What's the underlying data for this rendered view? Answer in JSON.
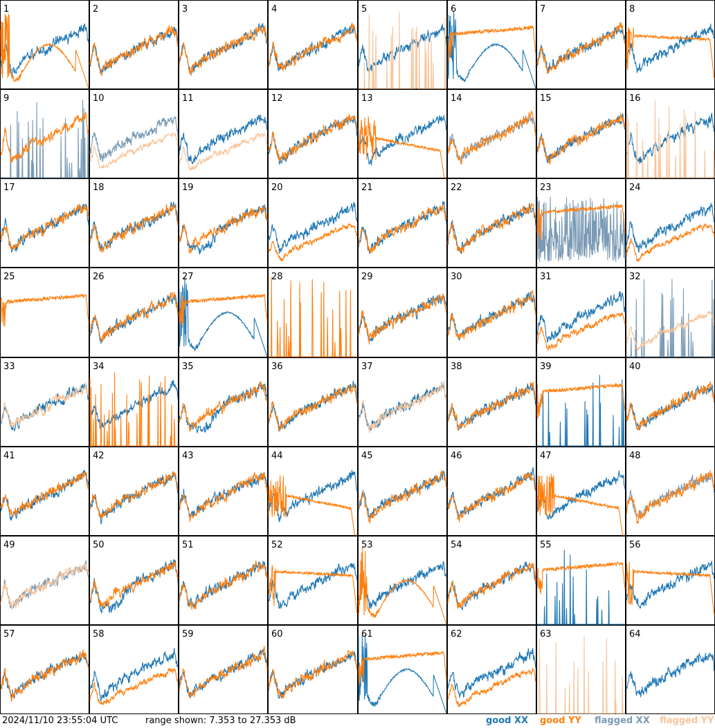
{
  "header": {
    "timestamp": "2024/11/10 23:55:04 UTC",
    "range_text": "range shown: 7.353 to 27.353 dB"
  },
  "legend": {
    "good_xx": "good XX",
    "good_yy": "good YY",
    "flagged_xx": "flagged XX",
    "flagged_yy": "flagged YY"
  },
  "colors": {
    "good_xx": "#1f77b4",
    "good_yy": "#ff7f0e",
    "flagged_xx": "#7a9ab5",
    "flagged_yy": "#f8c49a",
    "frame": "#000000"
  },
  "chart_data": {
    "type": "line",
    "rows": 8,
    "cols": 8,
    "ylim_db": [
      7.353,
      27.353
    ],
    "tiles": [
      {
        "id": "1",
        "xx": "good",
        "yy": "good",
        "xx_shape": "normal",
        "yy_shape": "dip-bump-fall"
      },
      {
        "id": "2",
        "xx": "good",
        "yy": "good",
        "xx_shape": "normal",
        "yy_shape": "normal"
      },
      {
        "id": "3",
        "xx": "good",
        "yy": "good",
        "xx_shape": "normal",
        "yy_shape": "normal"
      },
      {
        "id": "4",
        "xx": "good",
        "yy": "good",
        "xx_shape": "normal",
        "yy_shape": "normal"
      },
      {
        "id": "5",
        "xx": "good",
        "yy": "flagged",
        "xx_shape": "normal",
        "yy_shape": "spikes-low"
      },
      {
        "id": "6",
        "xx": "good",
        "yy": "good",
        "xx_shape": "dip-bump-fall",
        "yy_shape": "flat-high"
      },
      {
        "id": "7",
        "xx": "good",
        "yy": "good",
        "xx_shape": "normal",
        "yy_shape": "normal"
      },
      {
        "id": "8",
        "xx": "good",
        "yy": "good",
        "xx_shape": "normal",
        "yy_shape": "flat-mid"
      },
      {
        "id": "9",
        "xx": "flagged",
        "yy": "good",
        "xx_shape": "spikes-low",
        "yy_shape": "normal"
      },
      {
        "id": "10",
        "xx": "flagged",
        "yy": "flagged",
        "xx_shape": "normal",
        "yy_shape": "low-curve"
      },
      {
        "id": "11",
        "xx": "good",
        "yy": "flagged",
        "xx_shape": "normal",
        "yy_shape": "low-curve"
      },
      {
        "id": "12",
        "xx": "good",
        "yy": "good",
        "xx_shape": "normal",
        "yy_shape": "normal"
      },
      {
        "id": "13",
        "xx": "good",
        "yy": "good",
        "xx_shape": "normal",
        "yy_shape": "decline-fall"
      },
      {
        "id": "14",
        "xx": "flagged",
        "yy": "good",
        "xx_shape": "normal",
        "yy_shape": "normal"
      },
      {
        "id": "15",
        "xx": "good",
        "yy": "good",
        "xx_shape": "normal",
        "yy_shape": "normal"
      },
      {
        "id": "16",
        "xx": "good",
        "yy": "flagged",
        "xx_shape": "normal",
        "yy_shape": "spikes-low"
      },
      {
        "id": "17",
        "xx": "good",
        "yy": "good",
        "xx_shape": "normal",
        "yy_shape": "normal"
      },
      {
        "id": "18",
        "xx": "good",
        "yy": "good",
        "xx_shape": "normal",
        "yy_shape": "normal"
      },
      {
        "id": "19",
        "xx": "good",
        "yy": "good",
        "xx_shape": "deep",
        "yy_shape": "normal"
      },
      {
        "id": "20",
        "xx": "good",
        "yy": "good",
        "xx_shape": "normal",
        "yy_shape": "low-curve"
      },
      {
        "id": "21",
        "xx": "good",
        "yy": "good",
        "xx_shape": "normal",
        "yy_shape": "normal"
      },
      {
        "id": "22",
        "xx": "good",
        "yy": "good",
        "xx_shape": "normal",
        "yy_shape": "normal"
      },
      {
        "id": "23",
        "xx": "flagged",
        "yy": "good",
        "xx_shape": "noisy-low",
        "yy_shape": "flat-high"
      },
      {
        "id": "24",
        "xx": "good",
        "yy": "good",
        "xx_shape": "normal",
        "yy_shape": "low-curve"
      },
      {
        "id": "25",
        "xx": "good",
        "yy": "good",
        "xx_shape": "none",
        "yy_shape": "flat-high"
      },
      {
        "id": "26",
        "xx": "good",
        "yy": "good",
        "xx_shape": "normal",
        "yy_shape": "normal"
      },
      {
        "id": "27",
        "xx": "good",
        "yy": "good",
        "xx_shape": "dip-bump-fall",
        "yy_shape": "flat-high"
      },
      {
        "id": "28",
        "xx": "good",
        "yy": "good",
        "xx_shape": "none",
        "yy_shape": "spikes-low"
      },
      {
        "id": "29",
        "xx": "good",
        "yy": "good",
        "xx_shape": "normal",
        "yy_shape": "normal"
      },
      {
        "id": "30",
        "xx": "good",
        "yy": "good",
        "xx_shape": "normal",
        "yy_shape": "normal"
      },
      {
        "id": "31",
        "xx": "good",
        "yy": "good",
        "xx_shape": "normal",
        "yy_shape": "low-curve"
      },
      {
        "id": "32",
        "xx": "flagged",
        "yy": "flagged",
        "xx_shape": "spikes-low",
        "yy_shape": "low-curve"
      },
      {
        "id": "33",
        "xx": "good",
        "yy": "flagged",
        "xx_shape": "normal",
        "yy_shape": "normal"
      },
      {
        "id": "34",
        "xx": "good",
        "yy": "good",
        "xx_shape": "normal",
        "yy_shape": "spikes-low"
      },
      {
        "id": "35",
        "xx": "good",
        "yy": "good",
        "xx_shape": "deep",
        "yy_shape": "normal"
      },
      {
        "id": "36",
        "xx": "good",
        "yy": "good",
        "xx_shape": "normal",
        "yy_shape": "normal"
      },
      {
        "id": "37",
        "xx": "good",
        "yy": "flagged",
        "xx_shape": "normal",
        "yy_shape": "normal"
      },
      {
        "id": "38",
        "xx": "good",
        "yy": "good",
        "xx_shape": "normal",
        "yy_shape": "normal"
      },
      {
        "id": "39",
        "xx": "good",
        "yy": "good",
        "xx_shape": "spikes-low",
        "yy_shape": "flat-high"
      },
      {
        "id": "40",
        "xx": "good",
        "yy": "good",
        "xx_shape": "normal",
        "yy_shape": "normal"
      },
      {
        "id": "41",
        "xx": "good",
        "yy": "good",
        "xx_shape": "normal",
        "yy_shape": "normal"
      },
      {
        "id": "42",
        "xx": "good",
        "yy": "good",
        "xx_shape": "normal",
        "yy_shape": "normal"
      },
      {
        "id": "43",
        "xx": "good",
        "yy": "good",
        "xx_shape": "normal",
        "yy_shape": "normal"
      },
      {
        "id": "44",
        "xx": "good",
        "yy": "good",
        "xx_shape": "normal",
        "yy_shape": "decline-fall"
      },
      {
        "id": "45",
        "xx": "good",
        "yy": "good",
        "xx_shape": "normal",
        "yy_shape": "normal"
      },
      {
        "id": "46",
        "xx": "good",
        "yy": "good",
        "xx_shape": "normal",
        "yy_shape": "normal"
      },
      {
        "id": "47",
        "xx": "good",
        "yy": "good",
        "xx_shape": "normal",
        "yy_shape": "decline-fall"
      },
      {
        "id": "48",
        "xx": "flagged",
        "yy": "good",
        "xx_shape": "normal",
        "yy_shape": "normal"
      },
      {
        "id": "49",
        "xx": "flagged",
        "yy": "flagged",
        "xx_shape": "normal",
        "yy_shape": "normal"
      },
      {
        "id": "50",
        "xx": "good",
        "yy": "good",
        "xx_shape": "deep",
        "yy_shape": "normal"
      },
      {
        "id": "51",
        "xx": "good",
        "yy": "good",
        "xx_shape": "normal",
        "yy_shape": "normal"
      },
      {
        "id": "52",
        "xx": "good",
        "yy": "good",
        "xx_shape": "normal",
        "yy_shape": "flat-mid"
      },
      {
        "id": "53",
        "xx": "good",
        "yy": "good",
        "xx_shape": "normal",
        "yy_shape": "dip-bump-fall"
      },
      {
        "id": "54",
        "xx": "good",
        "yy": "good",
        "xx_shape": "normal",
        "yy_shape": "normal"
      },
      {
        "id": "55",
        "xx": "good",
        "yy": "good",
        "xx_shape": "spikes-low",
        "yy_shape": "flat-high"
      },
      {
        "id": "56",
        "xx": "good",
        "yy": "good",
        "xx_shape": "normal",
        "yy_shape": "flat-mid"
      },
      {
        "id": "57",
        "xx": "good",
        "yy": "good",
        "xx_shape": "normal",
        "yy_shape": "normal"
      },
      {
        "id": "58",
        "xx": "good",
        "yy": "good",
        "xx_shape": "normal",
        "yy_shape": "low-curve"
      },
      {
        "id": "59",
        "xx": "good",
        "yy": "good",
        "xx_shape": "normal",
        "yy_shape": "normal"
      },
      {
        "id": "60",
        "xx": "good",
        "yy": "good",
        "xx_shape": "normal",
        "yy_shape": "normal"
      },
      {
        "id": "61",
        "xx": "good",
        "yy": "good",
        "xx_shape": "dip-bump-fall",
        "yy_shape": "flat-high"
      },
      {
        "id": "62",
        "xx": "good",
        "yy": "good",
        "xx_shape": "normal",
        "yy_shape": "low-curve"
      },
      {
        "id": "63",
        "xx": "good",
        "yy": "flagged",
        "xx_shape": "none",
        "yy_shape": "spikes-low"
      },
      {
        "id": "64",
        "xx": "good",
        "yy": "good",
        "xx_shape": "normal",
        "yy_shape": "none"
      }
    ]
  }
}
